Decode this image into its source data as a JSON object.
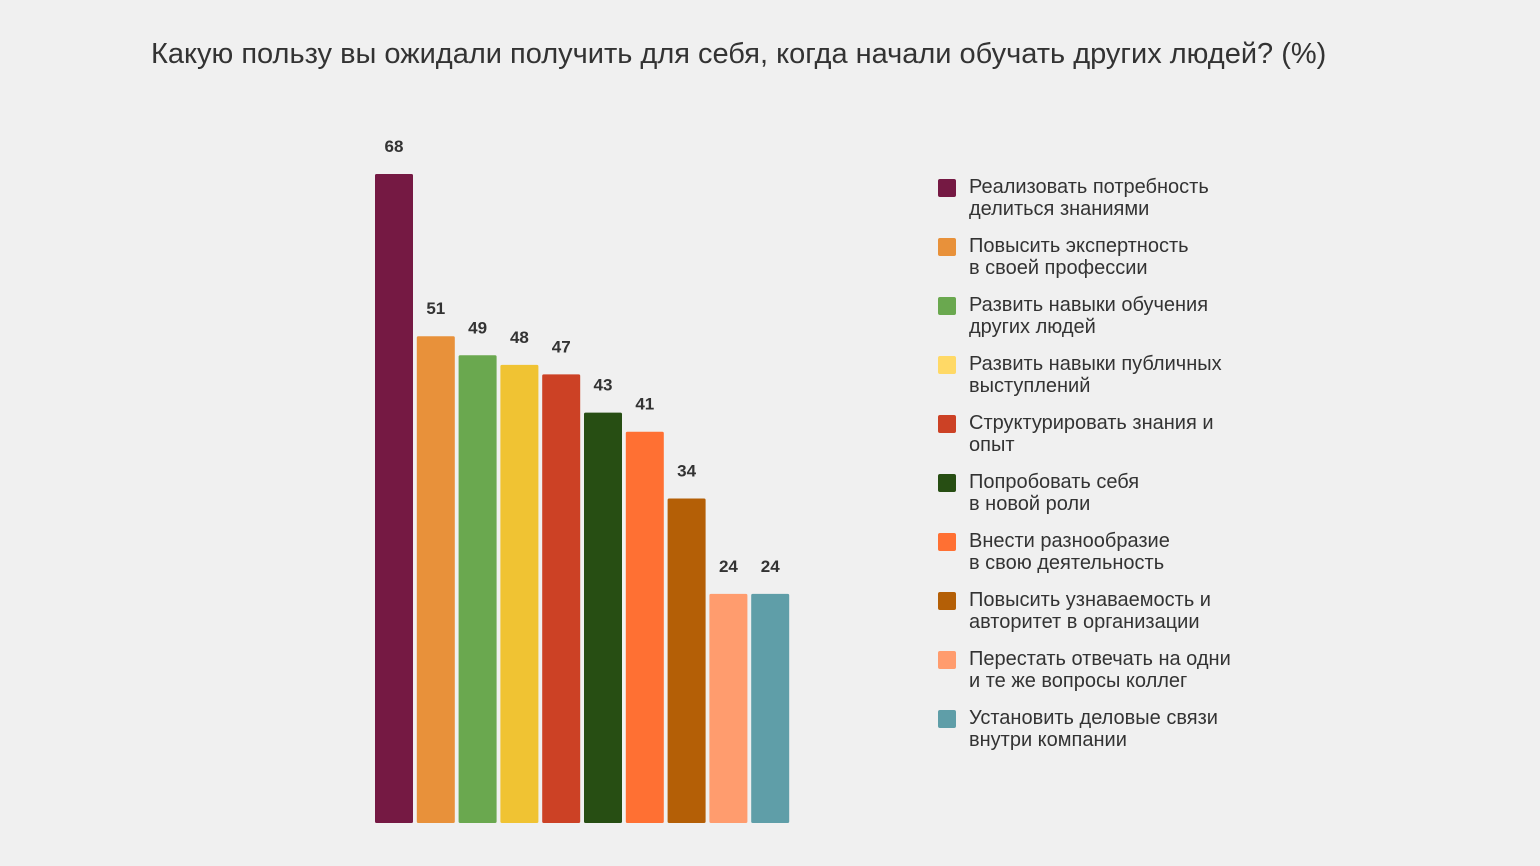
{
  "chart_data": {
    "type": "bar",
    "title": "Какую пользу вы ожидали получить для себя, когда начали обучать других людей? (%)",
    "xlabel": "",
    "ylabel": "",
    "ylim": [
      0,
      68
    ],
    "grid": false,
    "legend_position": "right",
    "categories": [
      "Реализовать потребность\nделиться знаниями",
      "Повысить экспертность\nв своей профессии",
      "Развить навыки обучения\nдругих людей",
      "Развить навыки публичных\nвыступлений",
      "Структурировать знания и\nопыт",
      "Попробовать себя\nв новой роли",
      "Внести разнообразие\nв свою деятельность",
      "Повысить узнаваемость и\nавторитет в организации",
      "Перестать отвечать на одни\nи те же вопросы коллег",
      "Установить деловые связи\nвнутри компании"
    ],
    "values": [
      68,
      51,
      49,
      48,
      47,
      43,
      41,
      34,
      24,
      24
    ],
    "value_labels": [
      "68",
      "51",
      "49",
      "48",
      "47",
      "43",
      "41",
      "34",
      "24",
      "24"
    ],
    "bar_colors": [
      "#751943",
      "#e8913a",
      "#6aa84f",
      "#f0c333",
      "#cc4125",
      "#274e13",
      "#ff7033",
      "#b45f06",
      "#ff9c6e",
      "#5f9ea8"
    ],
    "legend_colors": [
      "#751943",
      "#e8913a",
      "#6aa84f",
      "#ffd966",
      "#cc4125",
      "#274e13",
      "#ff7033",
      "#b45f06",
      "#ff9c6e",
      "#5f9ea8"
    ]
  }
}
